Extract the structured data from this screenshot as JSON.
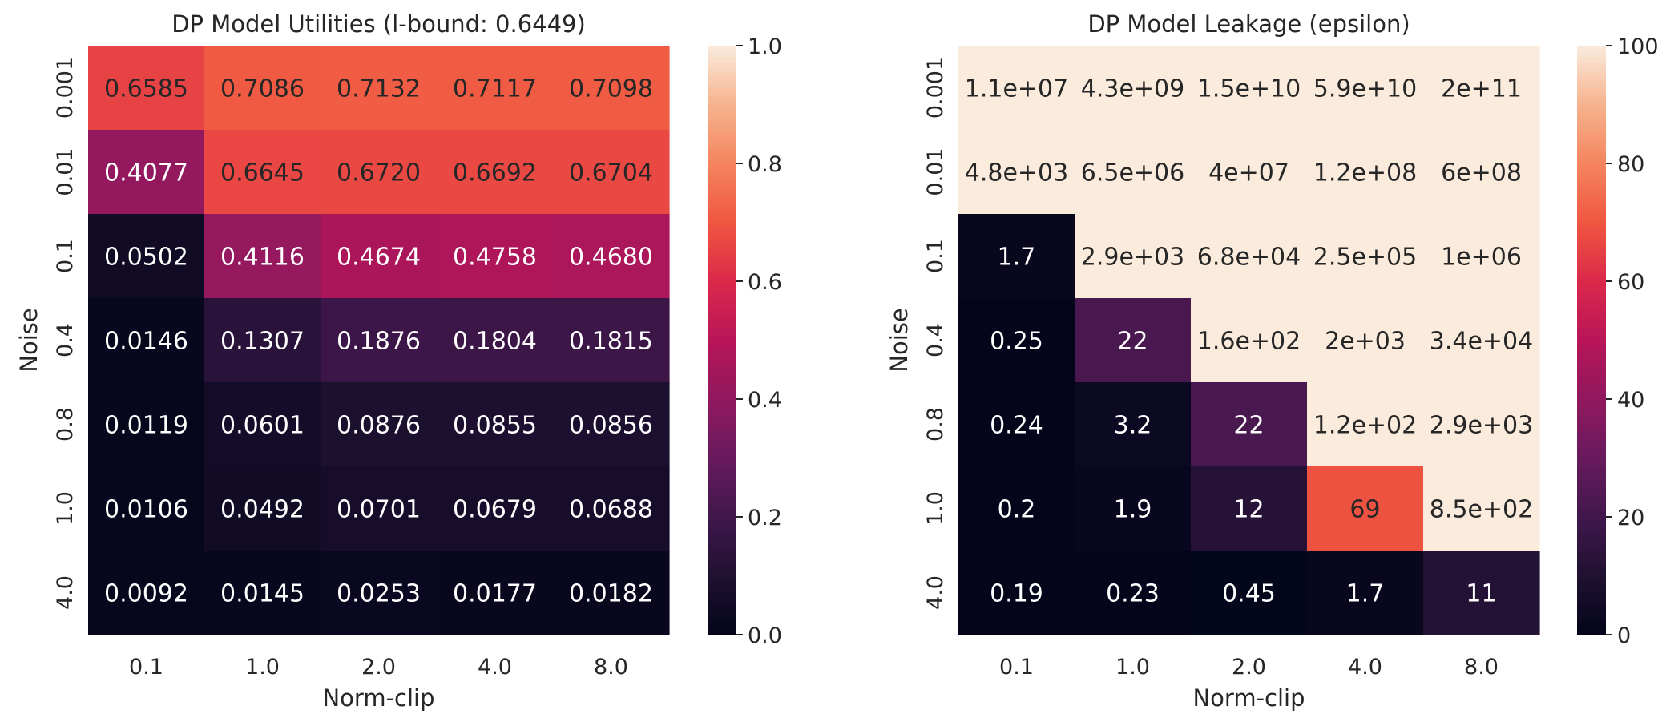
{
  "chart_data": [
    {
      "type": "heatmap",
      "title": "DP Model Utilities (l-bound: 0.6449)",
      "xlabel": "Norm-clip",
      "ylabel": "Noise",
      "x_categories": [
        "0.1",
        "1.0",
        "2.0",
        "4.0",
        "8.0"
      ],
      "y_categories": [
        "0.001",
        "0.01",
        "0.1",
        "0.4",
        "0.8",
        "1.0",
        "4.0"
      ],
      "values": [
        [
          0.6585,
          0.7086,
          0.7132,
          0.7117,
          0.7098
        ],
        [
          0.4077,
          0.6645,
          0.672,
          0.6692,
          0.6704
        ],
        [
          0.0502,
          0.4116,
          0.4674,
          0.4758,
          0.468
        ],
        [
          0.0146,
          0.1307,
          0.1876,
          0.1804,
          0.1815
        ],
        [
          0.0119,
          0.0601,
          0.0876,
          0.0855,
          0.0856
        ],
        [
          0.0106,
          0.0492,
          0.0701,
          0.0679,
          0.0688
        ],
        [
          0.0092,
          0.0145,
          0.0253,
          0.0177,
          0.0182
        ]
      ],
      "annotations": [
        [
          "0.6585",
          "0.7086",
          "0.7132",
          "0.7117",
          "0.7098"
        ],
        [
          "0.4077",
          "0.6645",
          "0.6720",
          "0.6692",
          "0.6704"
        ],
        [
          "0.0502",
          "0.4116",
          "0.4674",
          "0.4758",
          "0.4680"
        ],
        [
          "0.0146",
          "0.1307",
          "0.1876",
          "0.1804",
          "0.1815"
        ],
        [
          "0.0119",
          "0.0601",
          "0.0876",
          "0.0855",
          "0.0856"
        ],
        [
          "0.0106",
          "0.0492",
          "0.0701",
          "0.0679",
          "0.0688"
        ],
        [
          "0.0092",
          "0.0145",
          "0.0253",
          "0.0177",
          "0.0182"
        ]
      ],
      "vmin": 0,
      "vmax": 1,
      "colorbar_ticks": [
        0.0,
        0.2,
        0.4,
        0.6,
        0.8,
        1.0
      ],
      "colorbar_tick_labels": [
        "0.0",
        "0.2",
        "0.4",
        "0.6",
        "0.8",
        "1.0"
      ],
      "colormap": "rocket"
    },
    {
      "type": "heatmap",
      "title": "DP Model Leakage (epsilon)",
      "xlabel": "Norm-clip",
      "ylabel": "Noise",
      "x_categories": [
        "0.1",
        "1.0",
        "2.0",
        "4.0",
        "8.0"
      ],
      "y_categories": [
        "0.001",
        "0.01",
        "0.1",
        "0.4",
        "0.8",
        "1.0",
        "4.0"
      ],
      "values": [
        [
          11000000,
          4300000000,
          15000000000,
          59000000000,
          200000000000
        ],
        [
          4800,
          6500000,
          40000000,
          120000000,
          600000000
        ],
        [
          1.7,
          2900,
          68000,
          250000,
          1000000
        ],
        [
          0.25,
          22,
          160,
          2000,
          34000
        ],
        [
          0.24,
          3.2,
          22,
          120,
          2900
        ],
        [
          0.2,
          1.9,
          12,
          69,
          850
        ],
        [
          0.19,
          0.23,
          0.45,
          1.7,
          11
        ]
      ],
      "annotations": [
        [
          "1.1e+07",
          "4.3e+09",
          "1.5e+10",
          "5.9e+10",
          "2e+11"
        ],
        [
          "4.8e+03",
          "6.5e+06",
          "4e+07",
          "1.2e+08",
          "6e+08"
        ],
        [
          "1.7",
          "2.9e+03",
          "6.8e+04",
          "2.5e+05",
          "1e+06"
        ],
        [
          "0.25",
          "22",
          "1.6e+02",
          "2e+03",
          "3.4e+04"
        ],
        [
          "0.24",
          "3.2",
          "22",
          "1.2e+02",
          "2.9e+03"
        ],
        [
          "0.2",
          "1.9",
          "12",
          "69",
          "8.5e+02"
        ],
        [
          "0.19",
          "0.23",
          "0.45",
          "1.7",
          "11"
        ]
      ],
      "vmin": 0,
      "vmax": 100,
      "colorbar_ticks": [
        0,
        20,
        40,
        60,
        80,
        100
      ],
      "colorbar_tick_labels": [
        "0",
        "20",
        "40",
        "60",
        "80",
        "100"
      ],
      "colormap": "rocket"
    }
  ]
}
